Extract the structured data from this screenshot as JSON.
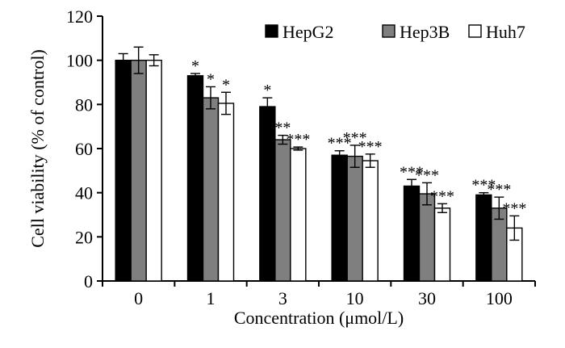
{
  "chart_data": {
    "type": "bar",
    "title": "",
    "xlabel": "Concentration (μmol/L)",
    "ylabel": "Cell viability (% of control)",
    "ylim": [
      0,
      120
    ],
    "yticks": [
      0,
      20,
      40,
      60,
      80,
      100,
      120
    ],
    "categories": [
      "0",
      "1",
      "3",
      "10",
      "30",
      "100"
    ],
    "grid": false,
    "legend_position": "top-right",
    "series": [
      {
        "name": "HepG2",
        "color": "#000000",
        "values": [
          100,
          93,
          79,
          57,
          43,
          39
        ],
        "errors": [
          3,
          1,
          4,
          2,
          3,
          1
        ],
        "significance": [
          "",
          "*",
          "*",
          "***",
          "***",
          "***"
        ]
      },
      {
        "name": "Hep3B",
        "color": "#7f7f7f",
        "values": [
          100,
          83,
          64,
          56.5,
          39.5,
          33
        ],
        "errors": [
          6,
          5,
          2,
          5,
          5,
          5
        ],
        "significance": [
          "",
          "*",
          "**",
          "***",
          "***",
          "***"
        ]
      },
      {
        "name": "Huh7",
        "color": "#ffffff",
        "values": [
          100,
          80.5,
          60,
          54.5,
          33,
          24
        ],
        "errors": [
          2.5,
          5,
          0.7,
          3,
          2,
          5.5
        ],
        "significance": [
          "",
          "*",
          "***",
          "***",
          "***",
          "***"
        ]
      }
    ]
  }
}
